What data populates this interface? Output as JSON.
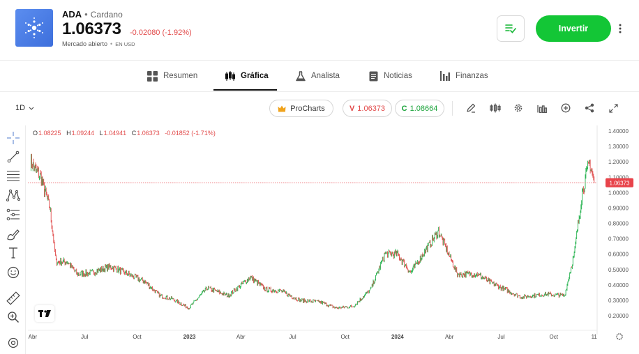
{
  "header": {
    "logo_icon": "cardano-logo",
    "symbol": "ADA",
    "separator": "•",
    "name": "Cardano",
    "price": "1.06373",
    "change": "-0.02080 (-1.92%)",
    "market_status": "Mercado abierto",
    "market_sep": "•",
    "currency": "EN USD",
    "watchlist_icon": "watchlist-icon",
    "invest_label": "Invertir",
    "more_icon": "kebab-icon"
  },
  "tabs": [
    {
      "label": "Resumen",
      "icon": "grid-icon",
      "active": false
    },
    {
      "label": "Gráfica",
      "icon": "candles-icon",
      "active": true
    },
    {
      "label": "Analista",
      "icon": "flask-icon",
      "active": false
    },
    {
      "label": "Noticias",
      "icon": "document-icon",
      "active": false
    },
    {
      "label": "Finanzas",
      "icon": "bars-icon",
      "active": false
    }
  ],
  "toolbar": {
    "interval": "1D",
    "prochart_label": "ProCharts",
    "sell_prefix": "V",
    "sell_value": "1.06373",
    "buy_prefix": "C",
    "buy_value": "1.08664",
    "tools": [
      "pencil-icon",
      "candles-icon",
      "gear-icon",
      "bars-icon",
      "plus-circle-icon",
      "share-icon",
      "expand-icon"
    ]
  },
  "left_tools": [
    "crosshair-icon",
    "trend-line-icon",
    "horizontal-lines-icon",
    "pattern-icon",
    "fib-icon",
    "brush-icon",
    "text-icon",
    "emoji-icon",
    "ruler-icon",
    "zoom-icon",
    "magnet-icon"
  ],
  "ohlc": {
    "o_label": "O",
    "o": "1.08225",
    "h_label": "H",
    "h": "1.09244",
    "l_label": "L",
    "l": "1.04941",
    "c_label": "C",
    "c": "1.06373",
    "chg": "-0.01852 (-1.71%)"
  },
  "chart_data": {
    "type": "line",
    "colors": {
      "up": "#22b14c",
      "down": "#e04a4a",
      "last_price": "#e8434a"
    },
    "y_ticks": [
      "1.40000",
      "1.30000",
      "1.20000",
      "1.10000",
      "1.00000",
      "0.90000",
      "0.80000",
      "0.70000",
      "0.60000",
      "0.50000",
      "0.40000",
      "0.30000",
      "0.20000"
    ],
    "ylim": [
      0.15,
      1.42
    ],
    "x_ticks": [
      "Abr",
      "Jul",
      "Oct",
      "2023",
      "Abr",
      "Jul",
      "Oct",
      "2024",
      "Abr",
      "Jul",
      "Oct",
      "11"
    ],
    "last_price_label": "1.06373",
    "last_price": 1.06373,
    "approx_series": {
      "x": [
        "2022-03-28",
        "2022-04-15",
        "2022-05-01",
        "2022-05-12",
        "2022-06-01",
        "2022-06-18",
        "2022-07-15",
        "2022-08-15",
        "2022-09-15",
        "2022-10-15",
        "2022-11-10",
        "2022-12-01",
        "2022-12-31",
        "2023-02-01",
        "2023-03-10",
        "2023-04-18",
        "2023-05-15",
        "2023-06-10",
        "2023-07-14",
        "2023-08-17",
        "2023-09-15",
        "2023-10-15",
        "2023-11-15",
        "2023-12-10",
        "2024-01-01",
        "2024-01-24",
        "2024-03-13",
        "2024-04-15",
        "2024-05-20",
        "2024-06-15",
        "2024-08-05",
        "2024-09-15",
        "2024-10-20",
        "2024-11-06",
        "2024-11-20",
        "2024-12-03",
        "2024-12-11"
      ],
      "y": [
        1.2,
        1.1,
        0.9,
        0.55,
        0.55,
        0.47,
        0.48,
        0.52,
        0.47,
        0.42,
        0.33,
        0.31,
        0.25,
        0.38,
        0.33,
        0.45,
        0.37,
        0.36,
        0.3,
        0.29,
        0.25,
        0.26,
        0.37,
        0.6,
        0.6,
        0.48,
        0.75,
        0.47,
        0.47,
        0.41,
        0.32,
        0.34,
        0.33,
        0.6,
        1.0,
        1.2,
        1.06373
      ]
    }
  }
}
